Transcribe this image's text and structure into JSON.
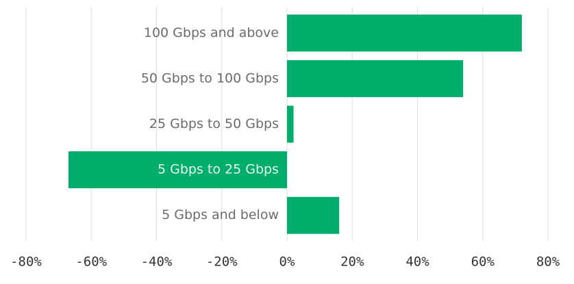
{
  "chart_data": {
    "type": "barh",
    "categories": [
      "100 Gbps and above",
      "50 Gbps to 100 Gbps",
      "25 Gbps to 50 Gbps",
      "5 Gbps to 25 Gbps",
      "5 Gbps and below"
    ],
    "values": [
      72,
      54,
      2,
      -67,
      16
    ],
    "color": "#00ad6b",
    "xlim": [
      -80,
      80
    ],
    "xticks": [
      {
        "value": -80,
        "label": "-80%"
      },
      {
        "value": -60,
        "label": "-60%"
      },
      {
        "value": -40,
        "label": "-40%"
      },
      {
        "value": -20,
        "label": "-20%"
      },
      {
        "value": 0,
        "label": "0%"
      },
      {
        "value": 20,
        "label": "20%"
      },
      {
        "value": 40,
        "label": "40%"
      },
      {
        "value": 60,
        "label": "60%"
      },
      {
        "value": 80,
        "label": "80%"
      }
    ],
    "grid": true
  }
}
